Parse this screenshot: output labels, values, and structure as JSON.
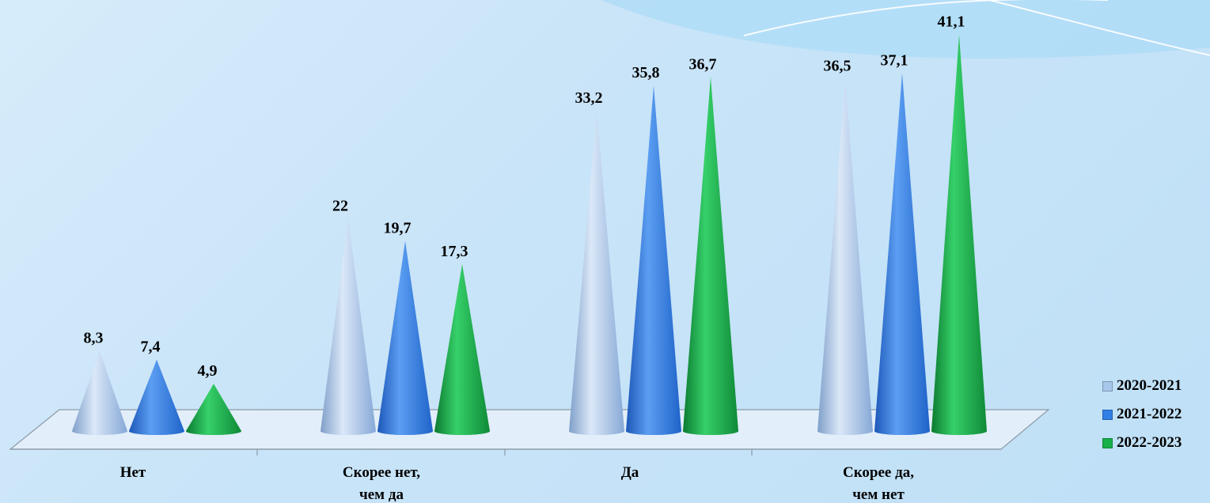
{
  "chart_data": {
    "type": "bar",
    "categories": [
      [
        "Нет"
      ],
      [
        "Скорее нет,",
        "чем да"
      ],
      [
        "Да"
      ],
      [
        "Скорее да,",
        "чем нет"
      ]
    ],
    "series": [
      {
        "name": "2020-2021",
        "values": [
          8.3,
          22,
          33.2,
          36.5
        ],
        "labels": [
          "8,3",
          "22",
          "33,2",
          "36,5"
        ],
        "color": "#a8c6ec"
      },
      {
        "name": "2021-2022",
        "values": [
          7.4,
          19.7,
          35.8,
          37.1
        ],
        "labels": [
          "7,4",
          "19,7",
          "35,8",
          "37,1"
        ],
        "color": "#2f7fe6"
      },
      {
        "name": "2022-2023",
        "values": [
          4.9,
          17.3,
          36.7,
          41.1
        ],
        "labels": [
          "4,9",
          "17,3",
          "36,7",
          "41,1"
        ],
        "color": "#18b04a"
      }
    ],
    "mark_shape": "cone",
    "legend_position": "right-bottom",
    "grid": false
  }
}
